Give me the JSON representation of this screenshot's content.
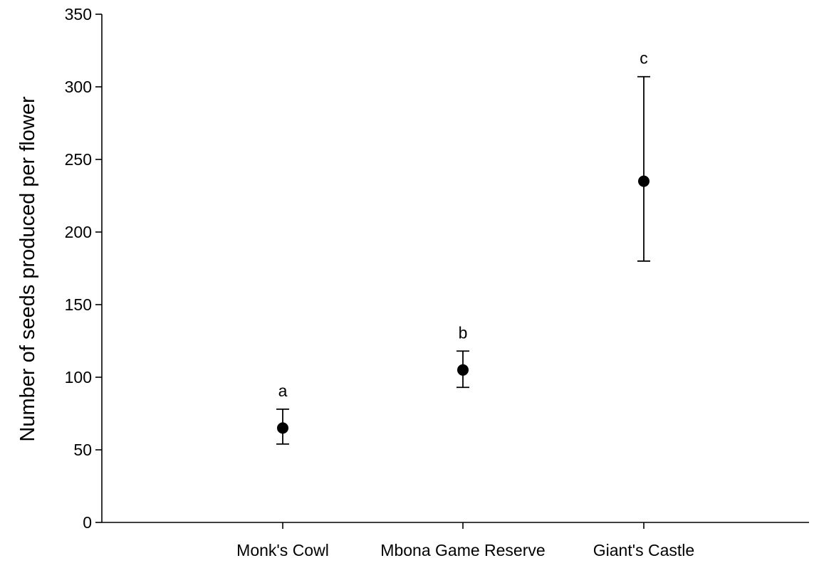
{
  "chart_data": {
    "type": "scatter",
    "title": "",
    "xlabel": "",
    "ylabel": "Number of seeds produced per flower",
    "ylim": [
      0,
      350
    ],
    "yticks": [
      0,
      50,
      100,
      150,
      200,
      250,
      300,
      350
    ],
    "grid": false,
    "legend": "none",
    "categories": [
      "Monk's Cowl",
      "Mbona Game Reserve",
      "Giant's Castle"
    ],
    "series": [
      {
        "values": [
          65,
          105,
          235
        ],
        "error_low": [
          54,
          93,
          180
        ],
        "error_high": [
          78,
          118,
          307
        ],
        "significance_labels": [
          "a",
          "b",
          "c"
        ]
      }
    ],
    "colors": {
      "marker": "#000000",
      "axis": "#000000"
    }
  }
}
